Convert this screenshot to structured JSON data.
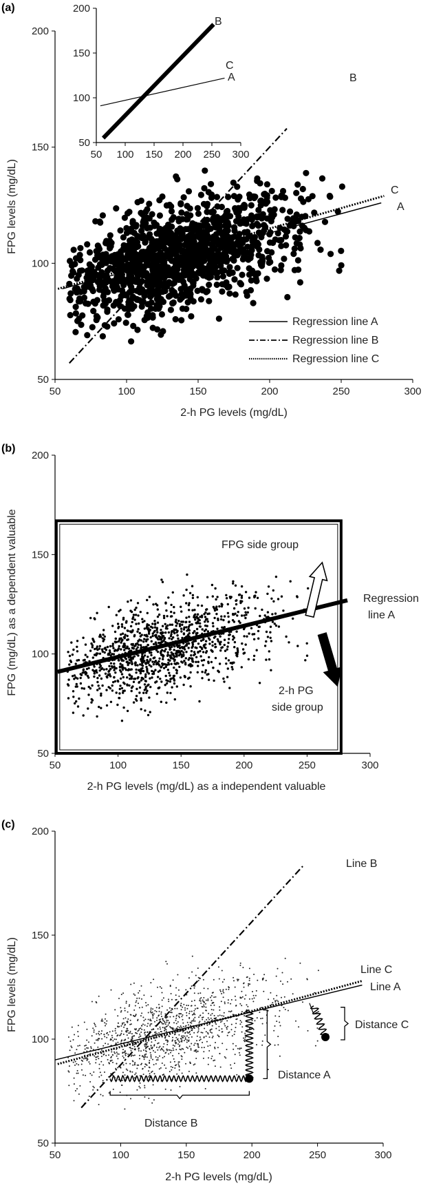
{
  "chart_data": [
    {
      "panel": "(a)",
      "type": "scatter",
      "xlabel": "2-h PG levels (mg/dL)",
      "ylabel": "FPG levels (mg/dL)",
      "xlim": [
        50,
        300
      ],
      "ylim": [
        50,
        200
      ],
      "xticks": [
        50,
        100,
        150,
        200,
        250,
        300
      ],
      "yticks": [
        50,
        100,
        150,
        200
      ],
      "scatter": {
        "n_points": 1300,
        "x_range": [
          60,
          252
        ],
        "y_range": [
          65,
          140
        ],
        "center": [
          122,
          101
        ],
        "marker": "large-dot"
      },
      "series": [
        {
          "name": "Regression line A",
          "style": "solid",
          "x": [
            55,
            278
          ],
          "y": [
            89,
            126
          ]
        },
        {
          "name": "Regression line B",
          "style": "dash-dot",
          "x": [
            60,
            212
          ],
          "y": [
            57,
            158
          ]
        },
        {
          "name": "Regression line C",
          "style": "dotted",
          "x": [
            52,
            280
          ],
          "y": [
            89,
            129
          ]
        }
      ],
      "line_end_labels": [
        {
          "text": "B",
          "x": 254,
          "y": 181
        },
        {
          "text": "C",
          "x": 282,
          "y": 131
        },
        {
          "text": "A",
          "x": 285,
          "y": 124
        }
      ],
      "legend": {
        "position": "bottom-right",
        "entries": [
          "Regression line A",
          "Regression line B",
          "Regression line C"
        ]
      },
      "inset": {
        "xlim": [
          50,
          300
        ],
        "ylim": [
          50,
          200
        ],
        "xticks": [
          50,
          100,
          150,
          200,
          250,
          300
        ],
        "yticks": [
          50,
          100,
          150,
          200
        ],
        "series": [
          {
            "name": "B",
            "style": "thick-solid",
            "x": [
              62,
              253
            ],
            "y": [
              55,
              182
            ]
          },
          {
            "name": "A",
            "style": "thin-solid",
            "x": [
              57,
              272
            ],
            "y": [
              91,
              122
            ]
          }
        ],
        "labels": [
          {
            "text": "B",
            "x": 258,
            "y": 184
          },
          {
            "text": "C",
            "x": 270,
            "y": 128
          },
          {
            "text": "A",
            "x": 271,
            "y": 117
          }
        ]
      }
    },
    {
      "panel": "(b)",
      "type": "scatter",
      "xlabel": "2-h PG levels (mg/dL) as a independent valuable",
      "ylabel": "FPG (mg/dL) as a dependent valuable",
      "xlim": [
        50,
        300
      ],
      "ylim": [
        50,
        200
      ],
      "xticks": [
        50,
        100,
        150,
        200,
        250,
        300
      ],
      "yticks": [
        50,
        100,
        150,
        200
      ],
      "scatter": {
        "n_points": 1300,
        "x_range": [
          60,
          252
        ],
        "y_range": [
          65,
          140
        ],
        "center": [
          122,
          101
        ],
        "marker": "small-dot"
      },
      "series": [
        {
          "name": "Regression line A",
          "style": "thick-solid",
          "x": [
            52,
            282
          ],
          "y": [
            91,
            127
          ]
        }
      ],
      "box": {
        "x": [
          51,
          277
        ],
        "y": [
          50,
          167
        ]
      },
      "arrows": [
        {
          "label": "FPG side group",
          "fill": "white",
          "from": [
            252,
            119
          ],
          "to": [
            262,
            146
          ]
        },
        {
          "label": "2-h PG side group",
          "fill": "black",
          "from": [
            262,
            110
          ],
          "to": [
            274,
            84
          ]
        }
      ],
      "labels": [
        "Regression",
        "line A",
        "FPG side group",
        "2-h PG",
        "side group"
      ]
    },
    {
      "panel": "(c)",
      "type": "scatter",
      "xlabel": "2-h PG levels (mg/dL)",
      "ylabel": "FPG levels (mg/dL)",
      "xlim": [
        50,
        300
      ],
      "ylim": [
        50,
        200
      ],
      "xticks": [
        50,
        100,
        150,
        200,
        250,
        300
      ],
      "yticks": [
        50,
        100,
        150,
        200
      ],
      "scatter": {
        "n_points": 1300,
        "x_range": [
          60,
          252
        ],
        "y_range": [
          65,
          140
        ],
        "center": [
          122,
          101
        ],
        "marker": "tiny-dot"
      },
      "series": [
        {
          "name": "Line A",
          "style": "solid",
          "x": [
            50,
            284
          ],
          "y": [
            90,
            126
          ]
        },
        {
          "name": "Line B",
          "style": "dash-dot",
          "x": [
            70,
            240
          ],
          "y": [
            67,
            184
          ]
        },
        {
          "name": "Line C",
          "style": "dotted",
          "x": [
            52,
            284
          ],
          "y": [
            88,
            128
          ]
        }
      ],
      "example_point": {
        "x": 198,
        "y": 81
      },
      "second_point": {
        "x": 256,
        "y": 101
      },
      "distances": [
        {
          "label": "Distance A",
          "from": [
            198,
            81
          ],
          "to": [
            198,
            114
          ]
        },
        {
          "label": "Distance B",
          "from": [
            198,
            81
          ],
          "to": [
            92,
            81
          ]
        },
        {
          "label": "Distance C",
          "from": [
            256,
            101
          ],
          "to": [
            247,
            116
          ]
        }
      ],
      "labels": [
        "Line B",
        "Line C",
        "Line A",
        "Distance A",
        "Distance B",
        "Distance C"
      ]
    }
  ],
  "page": {
    "panel_a": {
      "label": "(a)",
      "ylabel": "FPG levels (mg/dL)",
      "xlabel": "2-h PG levels (mg/dL)",
      "ticks_x": [
        "50",
        "100",
        "150",
        "200",
        "250",
        "300"
      ],
      "ticks_y": [
        "50",
        "100",
        "150",
        "200"
      ],
      "legend": [
        "Regression line A",
        "Regression line B",
        "Regression line C"
      ],
      "end_labels": [
        "B",
        "C",
        "A"
      ],
      "inset_ticks_x": [
        "50",
        "100",
        "150",
        "200",
        "250",
        "300"
      ],
      "inset_ticks_y": [
        "50",
        "100",
        "150",
        "200"
      ],
      "inset_labels": [
        "B",
        "C",
        "A"
      ]
    },
    "panel_b": {
      "label": "(b)",
      "ylabel": "FPG (mg/dL) as a dependent valuable",
      "xlabel": "2-h PG levels (mg/dL) as a independent valuable",
      "ticks_x": [
        "50",
        "100",
        "150",
        "200",
        "250",
        "300"
      ],
      "ticks_y": [
        "50",
        "100",
        "150",
        "200"
      ],
      "reg_label_1": "Regression",
      "reg_label_2": "line A",
      "fpg_side": "FPG side group",
      "pg_side_1": "2-h PG",
      "pg_side_2": "side group"
    },
    "panel_c": {
      "label": "(c)",
      "ylabel": "FPG levels (mg/dL)",
      "xlabel": "2-h PG levels (mg/dL)",
      "ticks_x": [
        "50",
        "100",
        "150",
        "200",
        "250",
        "300"
      ],
      "ticks_y": [
        "50",
        "100",
        "150",
        "200"
      ],
      "line_b": "Line B",
      "line_c": "Line C",
      "line_a": "Line A",
      "distance_a": "Distance A",
      "distance_b": "Distance B",
      "distance_c": "Distance C"
    }
  }
}
